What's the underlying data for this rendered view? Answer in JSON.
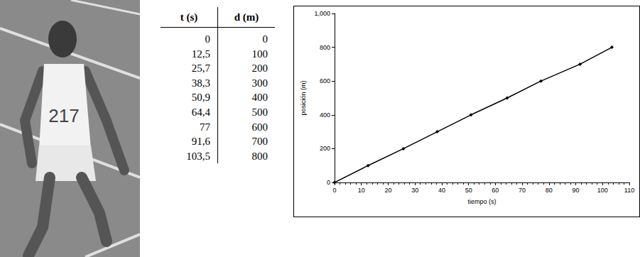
{
  "photo": {
    "bib_number": "217"
  },
  "table": {
    "header": [
      "t (s)",
      "d (m)"
    ],
    "rows": [
      [
        "0",
        "0"
      ],
      [
        "12,5",
        "100"
      ],
      [
        "25,7",
        "200"
      ],
      [
        "38,3",
        "300"
      ],
      [
        "50,9",
        "400"
      ],
      [
        "64,4",
        "500"
      ],
      [
        "77",
        "600"
      ],
      [
        "91,6",
        "700"
      ],
      [
        "103,5",
        "800"
      ]
    ]
  },
  "chart_data": {
    "type": "line",
    "x_label": "tiempo (s)",
    "y_label": "posición (m)",
    "x": [
      0,
      12.5,
      25.7,
      38.3,
      50.9,
      64.4,
      77,
      91.6,
      103.5
    ],
    "values": [
      0,
      100,
      200,
      300,
      400,
      500,
      600,
      700,
      800
    ],
    "color": "#000000",
    "marker": "diamond",
    "line_style": "solid",
    "xlim": [
      0,
      110
    ],
    "xticks": [
      0,
      10,
      20,
      30,
      40,
      50,
      60,
      70,
      80,
      90,
      100,
      110
    ],
    "ylim": [
      0,
      1000
    ],
    "yticks": [
      0,
      200,
      400,
      600,
      800,
      1000
    ],
    "grid": false
  }
}
